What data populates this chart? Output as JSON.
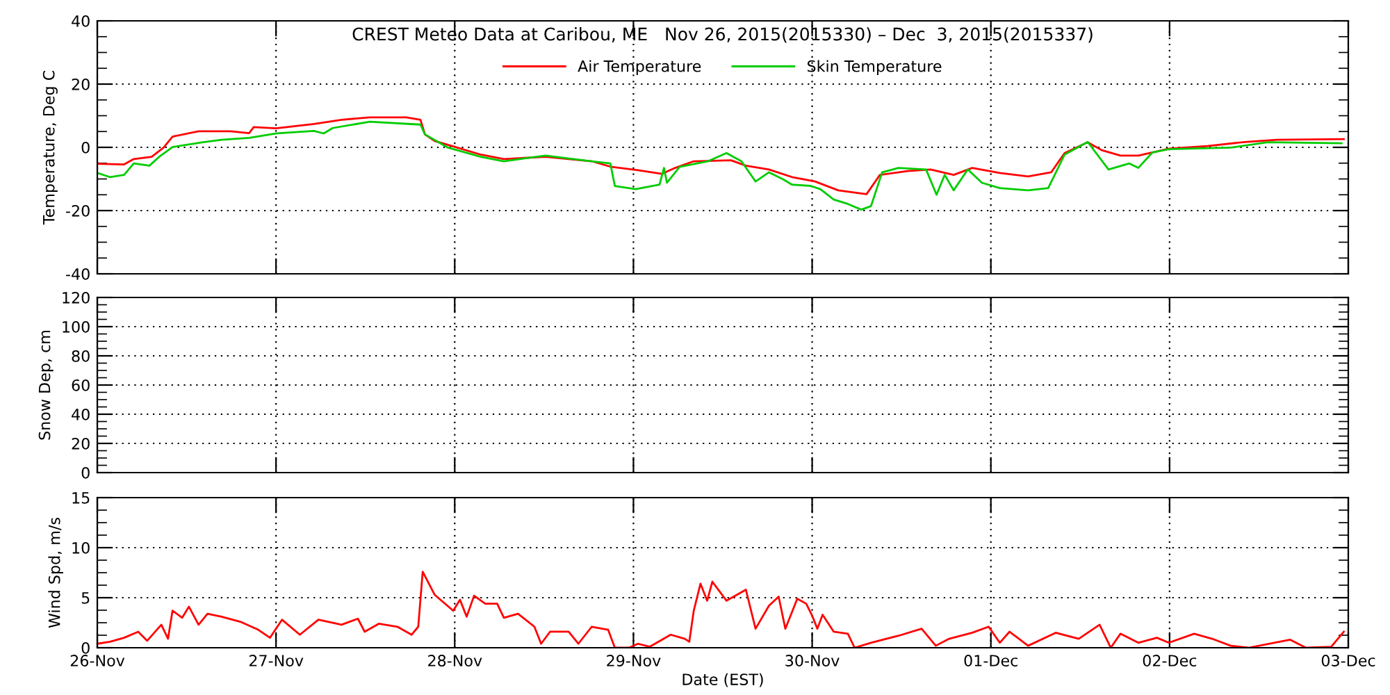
{
  "chart_data": [
    {
      "type": "line",
      "title": "CREST Meteo Data at Caribou, ME   Nov 26, 2015(2015330) – Dec  3, 2015(2015337)",
      "ylabel": "Temperature, Deg C",
      "xlim": [
        "2015-11-26",
        "2015-12-03"
      ],
      "xticks": [
        {
          "value": "2015-11-26",
          "label": null
        },
        {
          "value": "2015-11-27",
          "label": null
        },
        {
          "value": "2015-11-28",
          "label": null
        },
        {
          "value": "2015-11-29",
          "label": null
        },
        {
          "value": "2015-11-30",
          "label": null
        },
        {
          "value": "2015-12-01",
          "label": null
        },
        {
          "value": "2015-12-02",
          "label": null
        },
        {
          "value": "2015-12-03",
          "label": null
        }
      ],
      "ylim": [
        -40,
        40
      ],
      "yticks": [
        -40,
        -20,
        0,
        20,
        40
      ],
      "grid": true,
      "legend": "top",
      "line_style": "solid",
      "tick_labels": "y",
      "series": [
        {
          "name": "Air Temperature",
          "color": "#ff0000",
          "x": [
            "2015-11-26T00:00",
            "2015-11-26T03:36",
            "2015-11-26T04:54",
            "2015-11-26T07:18",
            "2015-11-26T08:54",
            "2015-11-26T10:06",
            "2015-11-26T13:36",
            "2015-11-26T17:54",
            "2015-11-26T20:24",
            "2015-11-26T21:00",
            "2015-11-27T00:00",
            "2015-11-27T05:06",
            "2015-11-27T08:48",
            "2015-11-27T12:36",
            "2015-11-27T17:30",
            "2015-11-27T19:24",
            "2015-11-27T20:00",
            "2015-11-27T21:18",
            "2015-11-27T23:48",
            "2015-11-28T03:30",
            "2015-11-28T06:36",
            "2015-11-28T12:12",
            "2015-11-28T18:24",
            "2015-11-28T20:54",
            "2015-11-29T00:36",
            "2015-11-29T03:48",
            "2015-11-29T05:36",
            "2015-11-29T08:06",
            "2015-11-29T13:06",
            "2015-11-29T15:06",
            "2015-11-29T18:12",
            "2015-11-29T21:18",
            "2015-11-30T00:24",
            "2015-11-30T03:30",
            "2015-11-30T07:18",
            "2015-11-30T09:06",
            "2015-11-30T12:48",
            "2015-11-30T15:54",
            "2015-11-30T19:00",
            "2015-11-30T21:30",
            "2015-12-01T01:12",
            "2015-12-01T05:00",
            "2015-12-01T08:06",
            "2015-12-01T09:54",
            "2015-12-01T13:00",
            "2015-12-01T14:54",
            "2015-12-01T17:24",
            "2015-12-01T19:48",
            "2015-12-01T22:18",
            "2015-12-01T23:54",
            "2015-12-02T05:06",
            "2015-12-02T10:06",
            "2015-12-02T14:24",
            "2015-12-02T23:24"
          ],
          "values": [
            -5.2,
            -5.4,
            -3.7,
            -3.0,
            -0.1,
            3.4,
            5.1,
            5.1,
            4.5,
            6.4,
            6.0,
            7.4,
            8.7,
            9.5,
            9.5,
            8.7,
            4.1,
            2.0,
            0.3,
            -2.3,
            -3.7,
            -3.0,
            -4.4,
            -6.1,
            -7.2,
            -8.4,
            -6.5,
            -4.4,
            -4.1,
            -5.8,
            -7.0,
            -9.4,
            -10.8,
            -13.6,
            -14.8,
            -8.7,
            -7.5,
            -7.0,
            -8.7,
            -6.5,
            -8.1,
            -9.2,
            -7.9,
            -1.8,
            1.6,
            -0.9,
            -2.6,
            -2.6,
            -1.3,
            -0.4,
            0.4,
            1.7,
            2.4,
            2.6
          ]
        },
        {
          "name": "Skin Temperature",
          "color": "#00cc00",
          "x": [
            "2015-11-26T00:00",
            "2015-11-26T01:42",
            "2015-11-26T03:36",
            "2015-11-26T04:54",
            "2015-11-26T07:00",
            "2015-11-26T08:18",
            "2015-11-26T10:06",
            "2015-11-26T14:12",
            "2015-11-26T16:42",
            "2015-11-26T20:24",
            "2015-11-27T00:06",
            "2015-11-27T05:06",
            "2015-11-27T06:24",
            "2015-11-27T07:36",
            "2015-11-27T12:36",
            "2015-11-27T19:24",
            "2015-11-27T20:00",
            "2015-11-27T23:06",
            "2015-11-28T03:30",
            "2015-11-28T06:36",
            "2015-11-28T12:12",
            "2015-11-28T18:24",
            "2015-11-28T20:54",
            "2015-11-28T21:30",
            "2015-11-29T00:18",
            "2015-11-29T03:30",
            "2015-11-29T04:06",
            "2015-11-29T04:30",
            "2015-11-29T06:12",
            "2015-11-29T10:00",
            "2015-11-29T12:30",
            "2015-11-29T14:30",
            "2015-11-29T16:24",
            "2015-11-29T18:12",
            "2015-11-29T20:06",
            "2015-11-29T21:18",
            "2015-11-29T23:48",
            "2015-11-30T01:06",
            "2015-11-30T02:54",
            "2015-11-30T04:48",
            "2015-11-30T06:36",
            "2015-11-30T07:54",
            "2015-11-30T09:24",
            "2015-11-30T11:36",
            "2015-11-30T15:18",
            "2015-11-30T16:42",
            "2015-11-30T17:48",
            "2015-11-30T19:00",
            "2015-11-30T20:54",
            "2015-11-30T22:48",
            "2015-12-01T01:12",
            "2015-12-01T05:00",
            "2015-12-01T07:42",
            "2015-12-01T09:54",
            "2015-12-01T13:00",
            "2015-12-01T15:48",
            "2015-12-01T18:36",
            "2015-12-01T19:48",
            "2015-12-01T21:42",
            "2015-12-01T23:54",
            "2015-12-02T08:12",
            "2015-12-02T13:12",
            "2015-12-02T23:06"
          ],
          "values": [
            -8.1,
            -9.4,
            -8.7,
            -5.1,
            -5.8,
            -3.0,
            0.1,
            1.6,
            2.4,
            3.0,
            4.4,
            5.2,
            4.4,
            6.1,
            8.1,
            7.2,
            4.1,
            -0.1,
            -3.0,
            -4.4,
            -2.6,
            -4.4,
            -5.1,
            -12.2,
            -13.2,
            -11.8,
            -6.5,
            -11.2,
            -6.2,
            -4.4,
            -1.8,
            -4.4,
            -10.8,
            -7.9,
            -10.1,
            -11.8,
            -12.2,
            -13.2,
            -16.5,
            -17.9,
            -19.7,
            -18.6,
            -7.9,
            -6.5,
            -7.0,
            -15.0,
            -8.7,
            -13.6,
            -7.0,
            -11.2,
            -12.9,
            -13.6,
            -12.9,
            -2.3,
            1.7,
            -7.0,
            -5.1,
            -6.5,
            -1.6,
            -0.6,
            -0.1,
            1.6,
            1.3
          ]
        }
      ]
    },
    {
      "type": "line",
      "ylabel": "Snow Dep, cm",
      "xlim": [
        "2015-11-26",
        "2015-12-03"
      ],
      "xticks": [
        {
          "value": "2015-11-26",
          "label": null
        },
        {
          "value": "2015-11-27",
          "label": null
        },
        {
          "value": "2015-11-28",
          "label": null
        },
        {
          "value": "2015-11-29",
          "label": null
        },
        {
          "value": "2015-11-30",
          "label": null
        },
        {
          "value": "2015-12-01",
          "label": null
        },
        {
          "value": "2015-12-02",
          "label": null
        },
        {
          "value": "2015-12-03",
          "label": null
        }
      ],
      "ylim": [
        0,
        120
      ],
      "yticks": [
        0,
        20,
        40,
        60,
        80,
        100,
        120
      ],
      "grid": true,
      "tick_labels": "y"
    },
    {
      "type": "line",
      "ylabel": "Wind Spd, m/s",
      "xlabel": "Date (EST)",
      "xlim": [
        "2015-11-26",
        "2015-12-03"
      ],
      "xticks": [
        {
          "value": "2015-11-26",
          "label": "26-Nov"
        },
        {
          "value": "2015-11-27",
          "label": "27-Nov"
        },
        {
          "value": "2015-11-28",
          "label": "28-Nov"
        },
        {
          "value": "2015-11-29",
          "label": "29-Nov"
        },
        {
          "value": "2015-11-30",
          "label": "30-Nov"
        },
        {
          "value": "2015-12-01",
          "label": "01-Dec"
        },
        {
          "value": "2015-12-02",
          "label": "02-Dec"
        },
        {
          "value": "2015-12-03",
          "label": "03-Dec"
        }
      ],
      "ylim": [
        0,
        15
      ],
      "yticks": [
        0,
        5,
        10,
        15
      ],
      "grid": true,
      "line_style": "solid",
      "series": [
        {
          "color": "#ff0000",
          "x": [
            "2015-11-26T00:00",
            "2015-11-26T01:42",
            "2015-11-26T03:36",
            "2015-11-26T05:30",
            "2015-11-26T06:42",
            "2015-11-26T08:36",
            "2015-11-26T09:30",
            "2015-11-26T10:06",
            "2015-11-26T11:24",
            "2015-11-26T12:18",
            "2015-11-26T13:36",
            "2015-11-26T14:48",
            "2015-11-26T16:42",
            "2015-11-26T19:12",
            "2015-11-26T21:36",
            "2015-11-26T23:12",
            "2015-11-27T00:48",
            "2015-11-27T03:12",
            "2015-11-27T05:42",
            "2015-11-27T08:48",
            "2015-11-27T11:00",
            "2015-11-27T11:54",
            "2015-11-27T13:48",
            "2015-11-27T16:18",
            "2015-11-27T18:12",
            "2015-11-27T19:06",
            "2015-11-27T19:42",
            "2015-11-27T21:18",
            "2015-11-27T23:48",
            "2015-11-28T00:42",
            "2015-11-28T01:36",
            "2015-11-28T02:36",
            "2015-11-28T04:06",
            "2015-11-28T05:42",
            "2015-11-28T06:36",
            "2015-11-28T08:30",
            "2015-11-28T10:42",
            "2015-11-28T11:36",
            "2015-11-28T12:48",
            "2015-11-28T15:18",
            "2015-11-28T16:36",
            "2015-11-28T18:24",
            "2015-11-28T20:36",
            "2015-11-28T21:30",
            "2015-11-28T23:24",
            "2015-11-29T00:36",
            "2015-11-29T02:12",
            "2015-11-29T05:00",
            "2015-11-29T06:54",
            "2015-11-29T07:30",
            "2015-11-29T08:06",
            "2015-11-29T09:00",
            "2015-11-29T09:54",
            "2015-11-29T10:36",
            "2015-11-29T12:30",
            "2015-11-29T15:06",
            "2015-11-29T16:24",
            "2015-11-29T18:12",
            "2015-11-29T19:30",
            "2015-11-29T20:24",
            "2015-11-29T22:00",
            "2015-11-29T23:12",
            "2015-11-30T00:00",
            "2015-11-30T00:42",
            "2015-11-30T01:24",
            "2015-11-30T02:54",
            "2015-11-30T04:48",
            "2015-11-30T05:42",
            "2015-11-30T07:54",
            "2015-11-30T11:36",
            "2015-11-30T14:42",
            "2015-11-30T16:36",
            "2015-11-30T18:24",
            "2015-11-30T21:30",
            "2015-11-30T23:42",
            "2015-12-01T01:12",
            "2015-12-01T02:30",
            "2015-12-01T05:00",
            "2015-12-01T08:42",
            "2015-12-01T11:48",
            "2015-12-01T14:36",
            "2015-12-01T16:06",
            "2015-12-01T17:24",
            "2015-12-01T19:48",
            "2015-12-01T22:18",
            "2015-12-01T23:54",
            "2015-12-02T03:18",
            "2015-12-02T05:42",
            "2015-12-02T08:12",
            "2015-12-02T10:36",
            "2015-12-02T16:12",
            "2015-12-02T18:18",
            "2015-12-02T21:42",
            "2015-12-02T23:24"
          ],
          "values": [
            0.4,
            0.6,
            1.0,
            1.6,
            0.7,
            2.3,
            0.9,
            3.7,
            3.0,
            4.1,
            2.3,
            3.4,
            3.1,
            2.6,
            1.8,
            1.0,
            2.8,
            1.3,
            2.8,
            2.3,
            2.9,
            1.6,
            2.4,
            2.1,
            1.3,
            2.1,
            7.6,
            5.3,
            3.7,
            4.8,
            3.1,
            5.2,
            4.4,
            4.4,
            3.0,
            3.4,
            2.1,
            0.4,
            1.6,
            1.6,
            0.4,
            2.1,
            1.8,
            0.0,
            0.0,
            0.4,
            0.1,
            1.3,
            0.9,
            0.6,
            3.7,
            6.4,
            4.7,
            6.6,
            4.7,
            5.8,
            1.9,
            4.2,
            5.1,
            1.9,
            4.9,
            4.4,
            3.2,
            1.9,
            3.3,
            1.6,
            1.4,
            0.0,
            0.5,
            1.2,
            1.9,
            0.2,
            0.9,
            1.5,
            2.1,
            0.5,
            1.6,
            0.2,
            1.5,
            0.9,
            2.3,
            0.0,
            1.4,
            0.5,
            1.0,
            0.5,
            1.4,
            0.9,
            0.2,
            0.0,
            0.8,
            0.0,
            0.1,
            1.6
          ]
        }
      ]
    }
  ]
}
